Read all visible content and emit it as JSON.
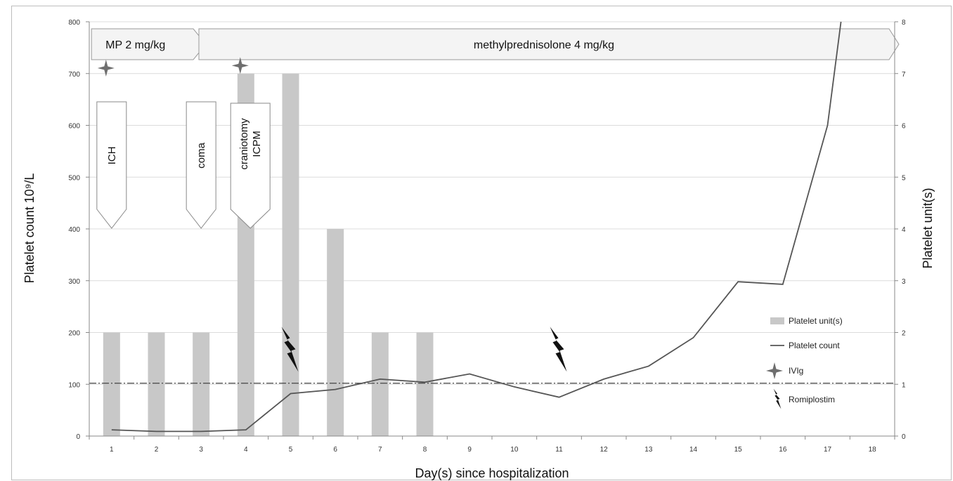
{
  "chart_data": {
    "type": "bar+line",
    "title": "",
    "xlabel": "Day(s) since hospitalization",
    "ylabel_left": "Platelet count 10⁹/L",
    "ylabel_right": "Platelet unit(s)",
    "x": [
      1,
      2,
      3,
      4,
      5,
      6,
      7,
      8,
      9,
      10,
      11,
      12,
      13,
      14,
      15,
      16,
      17,
      18
    ],
    "ylim_left": [
      0,
      800
    ],
    "ylim_right": [
      0,
      8
    ],
    "left_ticks": [
      0,
      100,
      200,
      300,
      400,
      500,
      600,
      700,
      800
    ],
    "right_ticks": [
      0,
      1,
      2,
      3,
      4,
      5,
      6,
      7,
      8
    ],
    "grid": true,
    "legend_position": "right",
    "series": [
      {
        "name": "Platelet unit(s)",
        "type": "bar",
        "axis": "right",
        "color": "#c8c8c8",
        "x": [
          1,
          2,
          3,
          4,
          5,
          6,
          7,
          8
        ],
        "values": [
          2,
          2,
          2,
          7,
          7,
          4,
          2,
          2
        ]
      },
      {
        "name": "Platelet count",
        "type": "line",
        "axis": "left",
        "color": "#555555",
        "x": [
          1,
          2,
          3,
          4,
          5,
          6,
          7,
          8,
          9,
          10,
          11,
          12,
          13,
          14,
          15,
          16,
          17,
          17.3
        ],
        "values": [
          12,
          9,
          9,
          12,
          82,
          90,
          110,
          104,
          120,
          95,
          75,
          110,
          135,
          190,
          298,
          293,
          600,
          800
        ]
      }
    ],
    "reference_line": {
      "value": 102,
      "axis": "left",
      "style": "dash-dot"
    },
    "markers": [
      {
        "name": "IVIg",
        "symbol": "star4",
        "x": [
          1,
          4
        ],
        "y": [
          720,
          725
        ]
      },
      {
        "name": "Romiplostim",
        "symbol": "lightning",
        "x": [
          5,
          11
        ],
        "y": [
          165,
          165
        ]
      }
    ],
    "annotations": {
      "treatment_bars": [
        {
          "label": "MP 2 mg/kg",
          "x_start": 0.55,
          "x_end": 2.95
        },
        {
          "label": "methylprednisolone 4 mg/kg",
          "x_start": 2.95,
          "x_end": 18.5
        }
      ],
      "events": [
        {
          "label": "ICH",
          "x": 1
        },
        {
          "label": "coma",
          "x": 3
        },
        {
          "label": "craniotomy ICPM",
          "x": 4.1
        }
      ]
    },
    "legend": [
      "Platelet unit(s)",
      "Platelet count",
      "IVIg",
      "Romiplostim"
    ]
  }
}
